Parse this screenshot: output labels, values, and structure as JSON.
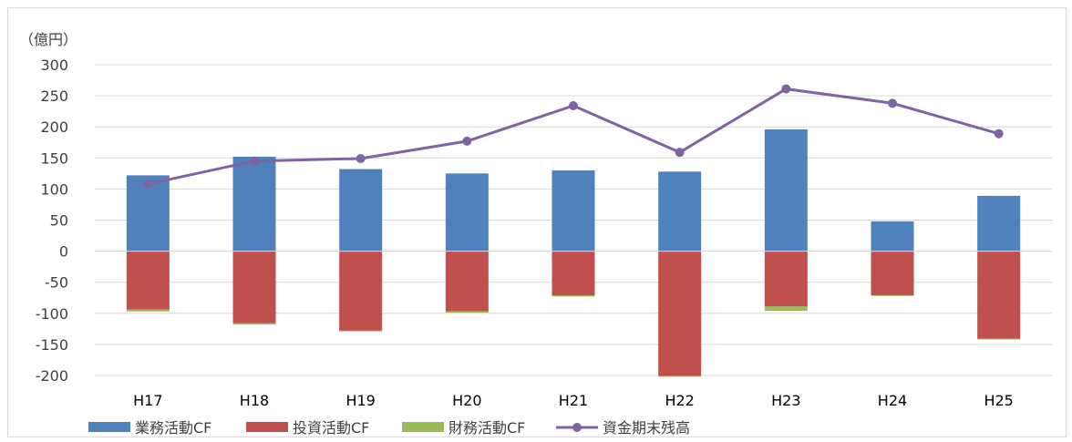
{
  "chart_data": {
    "type": "bar",
    "stacked": true,
    "unit_label": "（億円）",
    "categories": [
      "H17",
      "H18",
      "H19",
      "H20",
      "H21",
      "H22",
      "H23",
      "H24",
      "H25"
    ],
    "series": [
      {
        "name": "業務活動CF",
        "type": "bar",
        "color": "#4f81bd",
        "values": [
          122,
          152,
          132,
          125,
          130,
          128,
          196,
          48,
          89
        ]
      },
      {
        "name": "投資活動CF",
        "type": "bar",
        "color": "#c0504d",
        "values": [
          -94,
          -116,
          -128,
          -97,
          -71,
          -201,
          -89,
          -71,
          -141
        ]
      },
      {
        "name": "財務活動CF",
        "type": "bar",
        "color": "#9bbb59",
        "values": [
          -3,
          -2,
          -1,
          -2,
          -2,
          -1,
          -7,
          -1,
          -1
        ]
      },
      {
        "name": "資金期末残高",
        "type": "line",
        "color": "#8064a2",
        "values": [
          108,
          145,
          149,
          177,
          234,
          159,
          261,
          238,
          189
        ]
      }
    ],
    "ylim": [
      -200,
      300
    ],
    "yticks": [
      300,
      250,
      200,
      150,
      100,
      50,
      0,
      -50,
      -100,
      -150,
      -200
    ],
    "ytick_colors": {
      "negative": "#ff0000",
      "nonnegative": "#404040"
    },
    "grid": true,
    "legend": "bottom"
  }
}
